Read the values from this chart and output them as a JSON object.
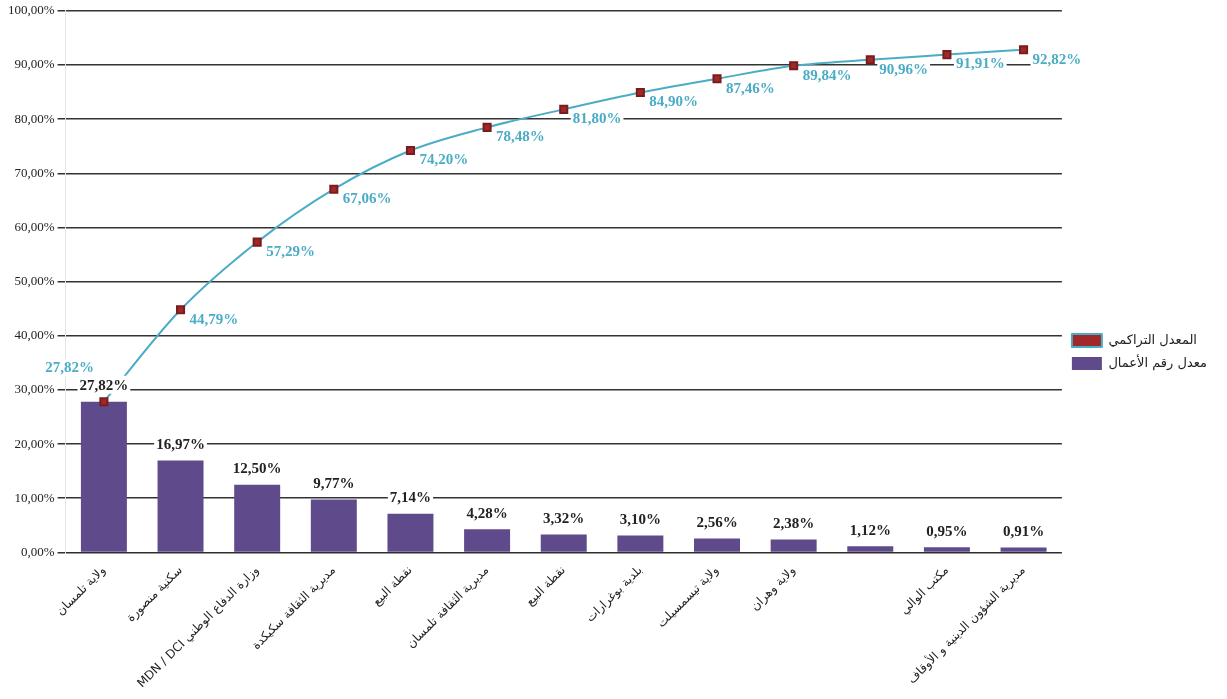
{
  "chart_data": {
    "type": "bar",
    "categories": [
      "ولاية تلمسان",
      "سكنية منصورة",
      "MDN / DCI وزارة الدفاع الوطني",
      "مديرية الثقافة سكيكدة",
      "نقطة البيع",
      "مديرية الثقافة تلمسان",
      "نقطة البيع",
      "بلدية بوغرارات",
      "ولاية تيسمسيلت",
      "ولاية وهران",
      null,
      "مكتب الوالي",
      "مديرية الشؤون الدينية و الأوقاف"
    ],
    "series": [
      {
        "name": "معدل رقم الأعمال",
        "color": "#5f4b8b",
        "values": [
          27.82,
          16.97,
          12.5,
          9.77,
          7.14,
          4.28,
          3.32,
          3.1,
          2.56,
          2.38,
          1.12,
          0.95,
          0.91
        ],
        "value_labels": [
          "27,82%",
          "16,97%",
          "12,50%",
          "9,77%",
          "7,14%",
          "4,28%",
          "3,32%",
          "3,10%",
          "2,56%",
          "2,38%",
          "1,12%",
          "0,95%",
          "0,91%"
        ]
      },
      {
        "type": "line",
        "name": "المعدل التراكمي",
        "color": "#4bacc6",
        "values": [
          27.82,
          44.79,
          57.29,
          67.06,
          74.2,
          78.48,
          81.8,
          84.9,
          87.46,
          89.84,
          90.96,
          91.91,
          92.82
        ],
        "value_labels": [
          "27,82%",
          "44,79%",
          "57,29%",
          "67,06%",
          "74,20%",
          "78,48%",
          "81,80%",
          "84,90%",
          "87,46%",
          "89,84%",
          "90,96%",
          "91,91%",
          "92,82%"
        ]
      }
    ],
    "ylim": [
      0,
      100
    ],
    "yticks": [
      {
        "value": 0,
        "label": "0,00%"
      },
      {
        "value": 10,
        "label": "10,00%"
      },
      {
        "value": 20,
        "label": "20,00%"
      },
      {
        "value": 30,
        "label": "30,00%"
      },
      {
        "value": 40,
        "label": "40,00%"
      },
      {
        "value": 50,
        "label": "50,00%"
      },
      {
        "value": 60,
        "label": "60,00%"
      },
      {
        "value": 70,
        "label": "70,00%"
      },
      {
        "value": 80,
        "label": "80,00%"
      },
      {
        "value": 90,
        "label": "90,00%"
      },
      {
        "value": 100,
        "label": "100,00%"
      }
    ],
    "grid": "y",
    "legend": "right",
    "marker": "square"
  }
}
